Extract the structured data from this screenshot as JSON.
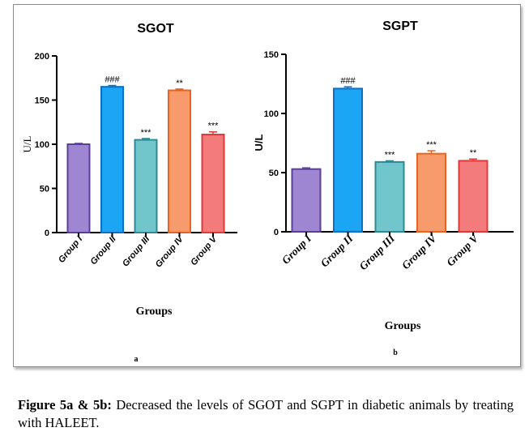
{
  "chart_data": [
    {
      "type": "bar",
      "title": "SGOT",
      "ylabel": "U/L",
      "xlabel": "Groups",
      "ylim": [
        0,
        200
      ],
      "yticks": [
        0,
        50,
        100,
        150,
        200
      ],
      "categories": [
        "Group I",
        "Group II",
        "Group III",
        "Group IV",
        "Group V"
      ],
      "values": [
        100,
        165,
        105,
        161,
        111
      ],
      "errors": [
        1,
        1.5,
        1.5,
        1.5,
        3
      ],
      "significance": [
        "",
        "###",
        "***",
        "**",
        "***"
      ],
      "colors": [
        "#9f86d2",
        "#1aa5f5",
        "#71c6cb",
        "#f79b6c",
        "#f47b7b"
      ],
      "edge_colors": [
        "#5b3f96",
        "#0d6fc4",
        "#2c8a96",
        "#e8641e",
        "#e33838"
      ],
      "panel": "a"
    },
    {
      "type": "bar",
      "title": "SGPT",
      "ylabel": "U/L",
      "xlabel": "Groups",
      "ylim": [
        0,
        150
      ],
      "yticks": [
        0,
        50,
        100,
        150
      ],
      "categories": [
        "Group I",
        "Group II",
        "Group III",
        "Group IV",
        "Group V"
      ],
      "values": [
        53,
        121,
        59,
        66,
        60
      ],
      "errors": [
        1,
        1.5,
        1,
        2.5,
        1.5
      ],
      "significance": [
        "",
        "###",
        "***",
        "***",
        "**"
      ],
      "colors": [
        "#9f86d2",
        "#1aa5f5",
        "#71c6cb",
        "#f79b6c",
        "#f47b7b"
      ],
      "edge_colors": [
        "#5b3f96",
        "#0d6fc4",
        "#2c8a96",
        "#e8641e",
        "#e33838"
      ],
      "panel": "b"
    }
  ],
  "caption": {
    "lead": "Figure 5a & 5b:",
    "text": " Decreased the levels of SGOT and SGPT in diabetic animals by treating with HALEET."
  }
}
